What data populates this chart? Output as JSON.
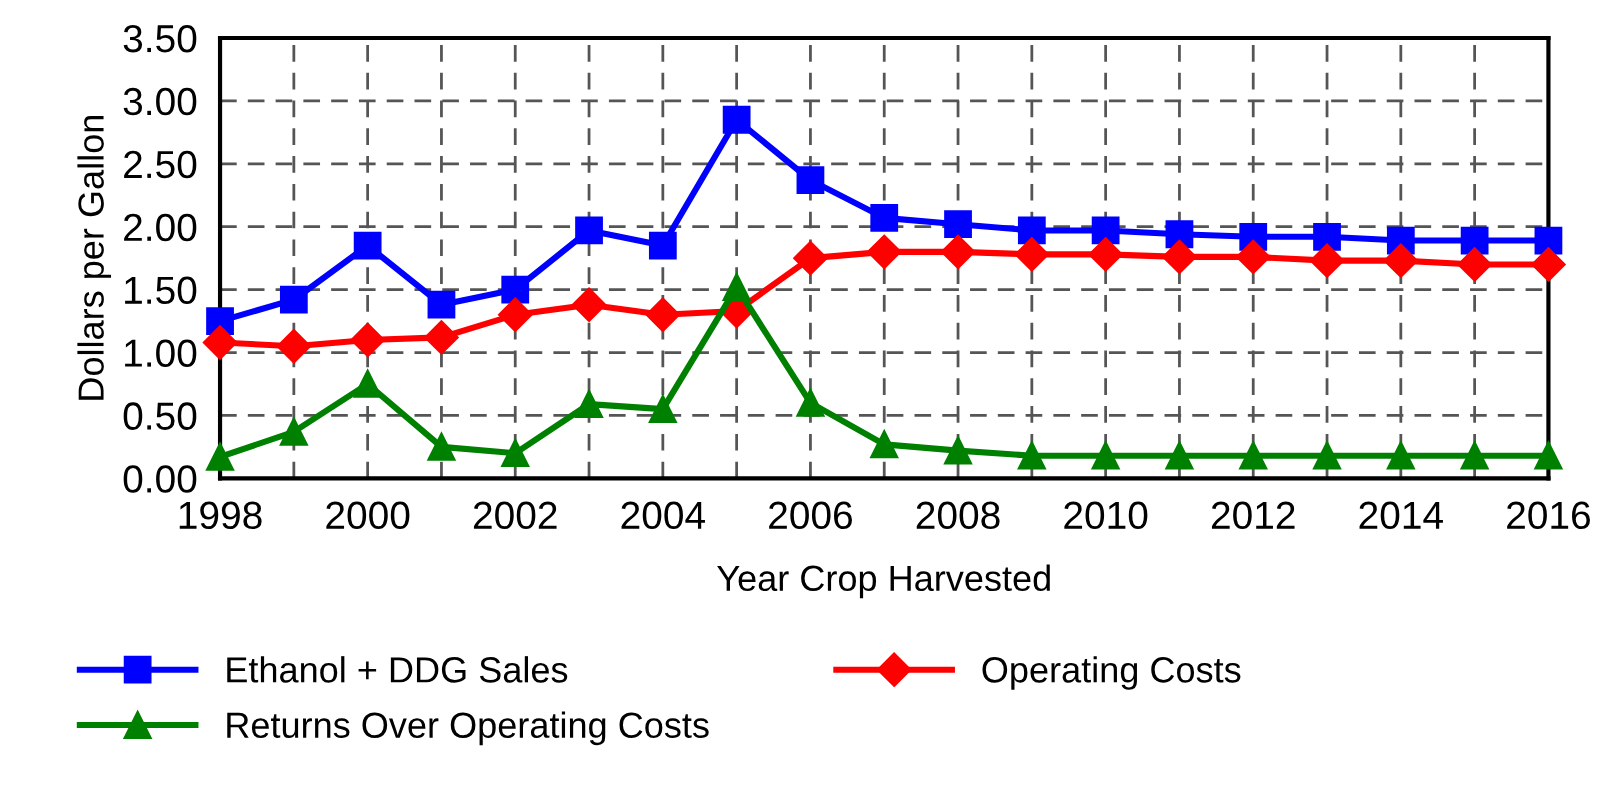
{
  "chart_data": {
    "type": "line",
    "xlabel": "Year Crop Harvested",
    "ylabel": "Dollars per Gallon",
    "x": [
      1998,
      1999,
      2000,
      2001,
      2002,
      2003,
      2004,
      2005,
      2006,
      2007,
      2008,
      2009,
      2010,
      2011,
      2012,
      2013,
      2014,
      2015,
      2016
    ],
    "series": [
      {
        "name": "Ethanol + DDG Sales",
        "color": "#0000ff",
        "marker": "square",
        "values": [
          1.25,
          1.42,
          1.85,
          1.38,
          1.5,
          1.97,
          1.85,
          2.85,
          2.37,
          2.07,
          2.02,
          1.97,
          1.97,
          1.94,
          1.92,
          1.92,
          1.89,
          1.89,
          1.89
        ]
      },
      {
        "name": "Operating Costs",
        "color": "#ff0000",
        "marker": "diamond",
        "values": [
          1.08,
          1.05,
          1.1,
          1.12,
          1.3,
          1.38,
          1.3,
          1.33,
          1.75,
          1.8,
          1.8,
          1.78,
          1.78,
          1.76,
          1.76,
          1.73,
          1.73,
          1.7,
          1.7
        ]
      },
      {
        "name": "Returns Over Operating Costs",
        "color": "#008000",
        "marker": "triangle",
        "values": [
          0.17,
          0.37,
          0.75,
          0.25,
          0.2,
          0.59,
          0.55,
          1.52,
          0.6,
          0.27,
          0.22,
          0.18,
          0.18,
          0.18,
          0.18,
          0.18,
          0.18,
          0.18,
          0.18
        ]
      }
    ],
    "xlim": [
      1998,
      2016
    ],
    "xticks": [
      1998,
      {
        "value": 1999,
        "label": null
      },
      2000,
      {
        "value": 2001,
        "label": null
      },
      2002,
      {
        "value": 2003,
        "label": null
      },
      2004,
      {
        "value": 2005,
        "label": null
      },
      2006,
      {
        "value": 2007,
        "label": null
      },
      2008,
      {
        "value": 2009,
        "label": null
      },
      2010,
      {
        "value": 2011,
        "label": null
      },
      2012,
      {
        "value": 2013,
        "label": null
      },
      2014,
      {
        "value": 2015,
        "label": null
      },
      2016
    ],
    "ylim": [
      0,
      3.5
    ],
    "yticks": [
      {
        "value": 0,
        "label": "0.00"
      },
      {
        "value": 0.5,
        "label": "0.50"
      },
      {
        "value": 1,
        "label": "1.00"
      },
      {
        "value": 1.5,
        "label": "1.50"
      },
      {
        "value": 2,
        "label": "2.00"
      },
      {
        "value": 2.5,
        "label": "2.50"
      },
      {
        "value": 3,
        "label": "3.00"
      },
      {
        "value": 3.5,
        "label": "3.50"
      }
    ],
    "grid": true,
    "legend": "bottom"
  }
}
